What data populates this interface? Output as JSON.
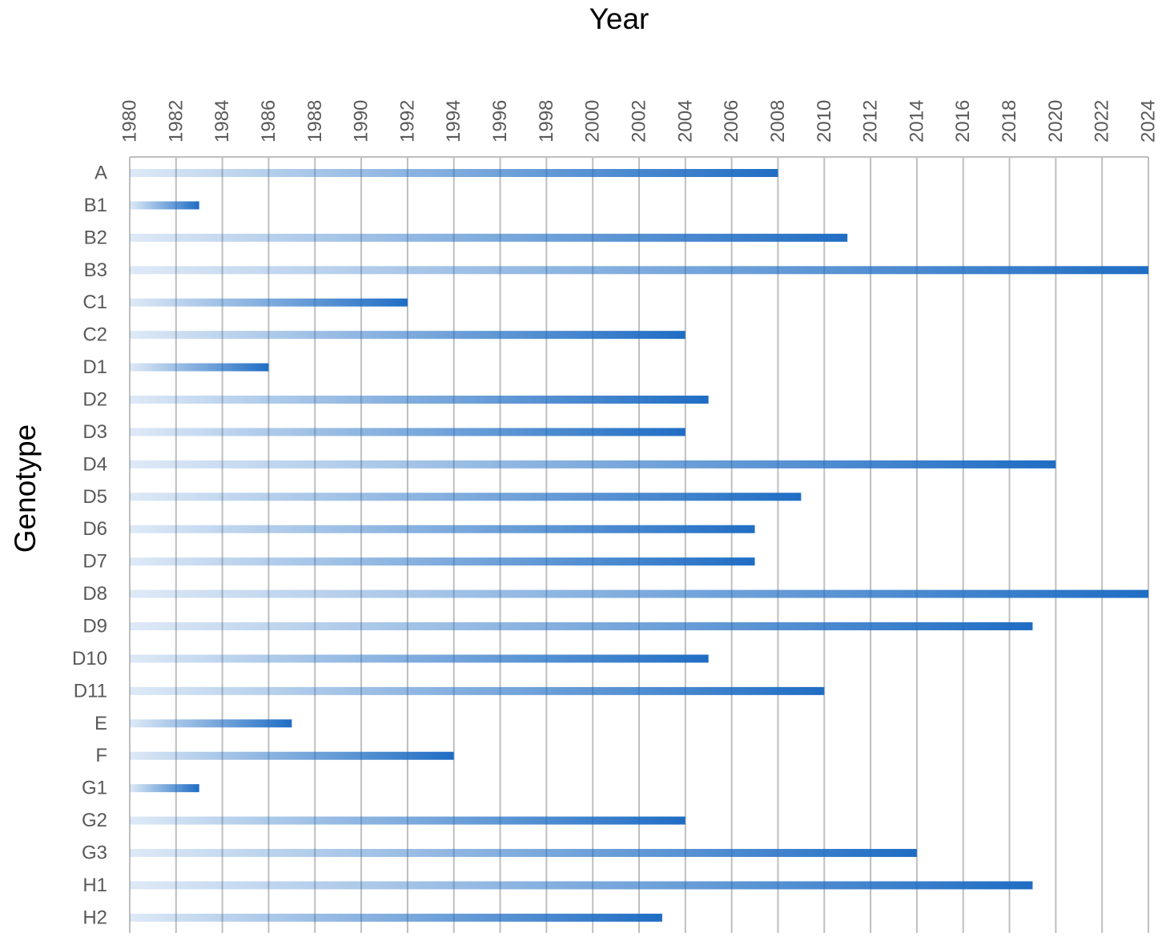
{
  "chart_data": {
    "type": "bar",
    "orientation": "horizontal",
    "xlabel": "Year",
    "ylabel": "Genotype",
    "xlim": [
      1980,
      2024
    ],
    "x_ticks": [
      "1980",
      "1982",
      "1984",
      "1986",
      "1988",
      "1990",
      "1992",
      "1994",
      "1996",
      "1998",
      "2000",
      "2002",
      "2004",
      "2006",
      "2008",
      "2010",
      "2012",
      "2014",
      "2016",
      "2018",
      "2020",
      "2022",
      "2024"
    ],
    "categories": [
      "A",
      "B1",
      "B2",
      "B3",
      "C1",
      "C2",
      "D1",
      "D2",
      "D3",
      "D4",
      "D5",
      "D6",
      "D7",
      "D8",
      "D9",
      "D10",
      "D11",
      "E",
      "F",
      "G1",
      "G2",
      "G3",
      "H1",
      "H2"
    ],
    "values": [
      2008,
      1983,
      2011,
      2024,
      1992,
      2004,
      1986,
      2005,
      2004,
      2020,
      2009,
      2007,
      2007,
      2024,
      2019,
      2005,
      2010,
      1987,
      1994,
      1983,
      2004,
      2014,
      2019,
      2003
    ],
    "grid": true,
    "legend": "none",
    "bar_fill": "gradient",
    "colors": {
      "bar_end": "#1f6dc4",
      "bar_start": "#ffffff",
      "grid": "#bfbfbf",
      "axis": "#bfbfbf",
      "tick_text": "#595959"
    }
  }
}
